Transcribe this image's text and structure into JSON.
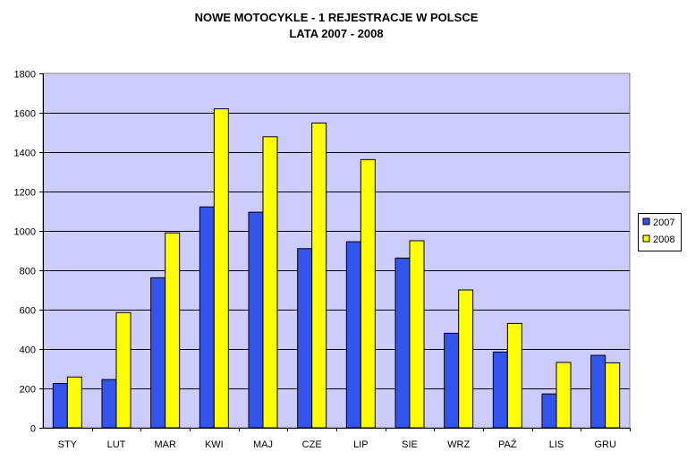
{
  "chart_data": {
    "type": "bar",
    "title": "NOWE MOTOCYKLE - 1 REJESTRACJE W POLSCE",
    "subtitle": "LATA 2007 - 2008",
    "categories": [
      "STY",
      "LUT",
      "MAR",
      "KWI",
      "MAJ",
      "CZE",
      "LIP",
      "SIE",
      "WRZ",
      "PAŹ",
      "LIS",
      "GRU"
    ],
    "series": [
      {
        "name": "2007",
        "color": "#3355EE",
        "values": [
          225,
          245,
          762,
          1122,
          1095,
          910,
          945,
          862,
          480,
          385,
          172,
          368
        ]
      },
      {
        "name": "2008",
        "color": "#FFFF00",
        "values": [
          258,
          585,
          990,
          1620,
          1478,
          1548,
          1362,
          950,
          700,
          530,
          332,
          330
        ]
      }
    ],
    "ylim": [
      0,
      1800
    ],
    "yticks": [
      0,
      200,
      400,
      600,
      800,
      1000,
      1200,
      1400,
      1600,
      1800
    ],
    "grid": true,
    "plot_background": "#CCCCFF",
    "legend_position": "right"
  }
}
